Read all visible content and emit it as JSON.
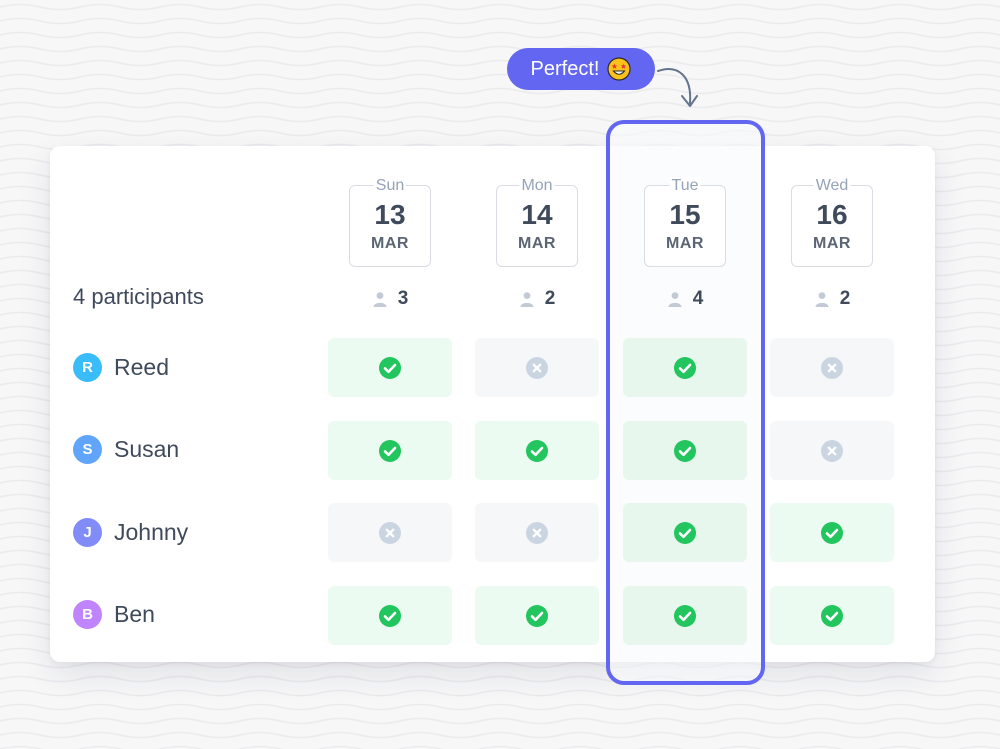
{
  "callout": {
    "text": "Perfect!",
    "emoji_icon": "star-struck-face-icon",
    "color": "#6366f1"
  },
  "participants_label": "4 participants",
  "dates": [
    {
      "dow": "Sun",
      "day": "13",
      "month": "MAR",
      "count": "3"
    },
    {
      "dow": "Mon",
      "day": "14",
      "month": "MAR",
      "count": "2"
    },
    {
      "dow": "Tue",
      "day": "15",
      "month": "MAR",
      "count": "4"
    },
    {
      "dow": "Wed",
      "day": "16",
      "month": "MAR",
      "count": "2"
    }
  ],
  "highlighted_date_index": 2,
  "participants": [
    {
      "initial": "R",
      "name": "Reed",
      "avatar_color": "#38bdf8",
      "availability": [
        "yes",
        "no",
        "yes",
        "no"
      ]
    },
    {
      "initial": "S",
      "name": "Susan",
      "avatar_color": "#60a5fa",
      "availability": [
        "yes",
        "yes",
        "yes",
        "no"
      ]
    },
    {
      "initial": "J",
      "name": "Johnny",
      "avatar_color": "#818cf8",
      "availability": [
        "no",
        "no",
        "yes",
        "yes"
      ]
    },
    {
      "initial": "B",
      "name": "Ben",
      "avatar_color": "#c084fc",
      "availability": [
        "yes",
        "yes",
        "yes",
        "yes"
      ]
    }
  ],
  "colors": {
    "yes": "#22c55e",
    "no": "#cbd5e1",
    "accent": "#6366f1",
    "text": "#3f4a5a"
  }
}
